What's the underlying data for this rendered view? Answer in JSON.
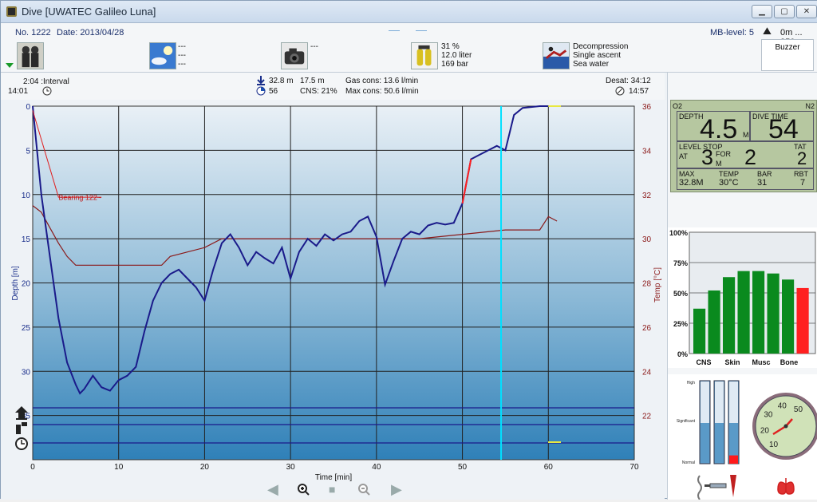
{
  "window": {
    "title": "Dive  [UWATEC Galileo Luna]"
  },
  "header": {
    "no": "No. 1222",
    "date": "Date: 2013/04/28",
    "mb_level": "MB-level: 5",
    "altitude": "0m ... 850m",
    "buzzer": "Buzzer",
    "weather": [
      "---",
      "---",
      "---"
    ],
    "camera": [
      "---"
    ],
    "tank": [
      "31 %",
      "12.0 liter",
      "169 bar"
    ],
    "dive_type": [
      "Decompression",
      "Single ascent",
      "Sea water"
    ]
  },
  "infobar": {
    "interval": "2:04 :Interval",
    "entry_time": "14:01",
    "max_depth": "32.8 m",
    "avg_depth": "17.5 m",
    "duration": "56",
    "cns": "CNS:  21%",
    "gas_cons": "Gas cons: 13.6 l/min",
    "max_cons": "Max cons: 50.6 l/min",
    "desat": "Desat:  34:12",
    "exit_time": "14:57"
  },
  "chart_data": {
    "type": "line",
    "xlabel": "Time [min]",
    "ylabel": "Depth [m]",
    "y2label": "Temp [°C]",
    "xlim": [
      0,
      70
    ],
    "ylim": [
      0,
      40
    ],
    "y2lim": [
      20,
      36
    ],
    "x_ticks": [
      0,
      10,
      20,
      30,
      40,
      50,
      60,
      70
    ],
    "y_ticks": [
      0,
      5,
      10,
      15,
      20,
      25,
      30,
      35
    ],
    "y2_ticks": [
      22,
      24,
      26,
      28,
      30,
      32,
      34,
      36
    ],
    "cursor_time": 54.5,
    "annotation": "Bearing 122~",
    "depth_series": {
      "name": "Depth",
      "x": [
        0,
        0.5,
        1,
        2,
        3,
        4,
        5,
        5.5,
        6,
        7,
        8,
        9,
        10,
        11,
        12,
        13,
        14,
        15,
        16,
        17,
        18,
        19,
        20,
        21,
        22,
        23,
        24,
        25,
        26,
        27,
        28,
        29,
        30,
        31,
        32,
        33,
        34,
        35,
        36,
        37,
        38,
        39,
        40,
        41,
        42,
        43,
        44,
        45,
        46,
        47,
        48,
        49,
        50,
        51,
        52,
        53,
        54,
        55,
        56,
        57,
        58,
        59,
        60
      ],
      "y": [
        0,
        5,
        10,
        17,
        24,
        29,
        31.5,
        32.5,
        32,
        30.5,
        31.8,
        32.2,
        31,
        30.5,
        29.5,
        25.5,
        22,
        20,
        19,
        18.5,
        19.5,
        20.5,
        22,
        18.5,
        15.5,
        14.5,
        16,
        18,
        16.5,
        17.2,
        17.8,
        16,
        19.5,
        16.5,
        15,
        15.8,
        14.5,
        15.2,
        14.5,
        14.2,
        13,
        12.5,
        14.8,
        20.2,
        17.5,
        15,
        14.2,
        14.5,
        13.5,
        13.2,
        13.4,
        13.2,
        11,
        6,
        5.5,
        5,
        4.5,
        5,
        1,
        0.2,
        0.1,
        0,
        0
      ]
    },
    "temp_series": {
      "name": "Temp",
      "x": [
        0,
        1,
        2,
        3,
        4,
        5,
        10,
        15,
        16,
        20,
        22,
        25,
        30,
        35,
        40,
        45,
        50,
        55,
        59,
        60,
        61
      ],
      "y": [
        31.5,
        31.2,
        30.5,
        29.8,
        29.2,
        28.8,
        28.8,
        28.8,
        29.2,
        29.6,
        30,
        30,
        30,
        30,
        30,
        30,
        30.2,
        30.4,
        30.4,
        31,
        30.8
      ]
    }
  },
  "lcd": {
    "o2": "O2",
    "n2": "N2",
    "depth_label": "DEPTH",
    "depth": "4.5",
    "depth_unit": "M",
    "time_label": "DIVE TIME",
    "time": "54",
    "stop_label": "LEVEL STOP",
    "at": "AT",
    "stop_depth": "3",
    "stop_unit": "M",
    "for": "FOR",
    "stop_time": "2",
    "tat_label": "TAT",
    "tat": "2",
    "max_label": "MAX",
    "max": "32.8M",
    "temp_label": "TEMP",
    "temp": "30°C",
    "bar_label": "BAR",
    "bar": "31",
    "rbt_label": "RBT",
    "rbt": "7"
  },
  "tissue_chart": {
    "ylabels": [
      "100%",
      "75%",
      "50%",
      "25%",
      "0%"
    ],
    "categories": [
      "CNS",
      "Skin",
      "Musc",
      "Bone"
    ],
    "values": [
      37,
      52,
      63,
      68,
      68,
      66,
      61,
      54
    ],
    "colors": [
      "#0a8a1e",
      "#0a8a1e",
      "#0a8a1e",
      "#0a8a1e",
      "#0a8a1e",
      "#0a8a1e",
      "#0a8a1e",
      "#ff2020"
    ]
  },
  "gauge": {
    "labels_left": [
      "High",
      "Significant",
      "Normal"
    ],
    "levels": [
      0,
      0,
      0.1
    ],
    "dial_ticks": [
      "10",
      "20",
      "30",
      "40",
      "50"
    ]
  },
  "colors": {
    "depth": "#1a1a8a",
    "temp": "#8b1a1a",
    "ascent": "#ff2020",
    "cursor": "#00e0ff"
  }
}
